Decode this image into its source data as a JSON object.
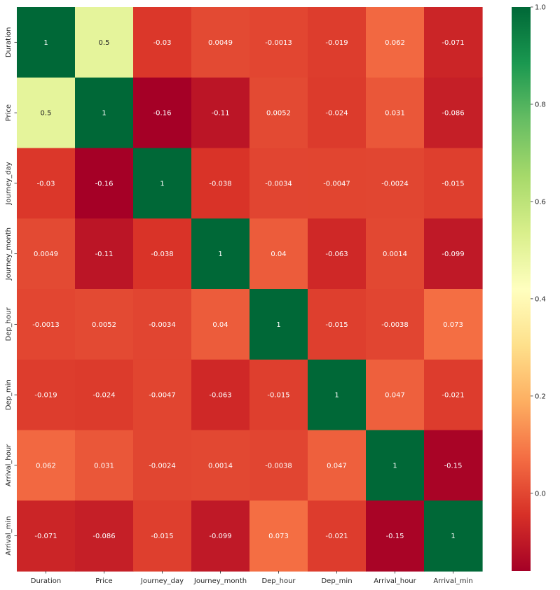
{
  "chart_data": {
    "type": "heatmap",
    "title": "",
    "xlabel": "",
    "ylabel": "",
    "x_categories": [
      "Duration",
      "Price",
      "Journey_day",
      "Journey_month",
      "Dep_hour",
      "Dep_min",
      "Arrival_hour",
      "Arrival_min"
    ],
    "y_categories": [
      "Duration",
      "Price",
      "Journey_day",
      "Journey_month",
      "Dep_hour",
      "Dep_min",
      "Arrival_hour",
      "Arrival_min"
    ],
    "values": [
      [
        1,
        0.5,
        -0.03,
        0.0049,
        -0.0013,
        -0.019,
        0.062,
        -0.071
      ],
      [
        0.5,
        1,
        -0.16,
        -0.11,
        0.0052,
        -0.024,
        0.031,
        -0.086
      ],
      [
        -0.03,
        -0.16,
        1,
        -0.038,
        -0.0034,
        -0.0047,
        -0.0024,
        -0.015
      ],
      [
        0.0049,
        -0.11,
        -0.038,
        1,
        0.04,
        -0.063,
        0.0014,
        -0.099
      ],
      [
        -0.0013,
        0.0052,
        -0.0034,
        0.04,
        1,
        -0.015,
        -0.0038,
        0.073
      ],
      [
        -0.019,
        -0.024,
        -0.0047,
        -0.063,
        -0.015,
        1,
        0.047,
        -0.021
      ],
      [
        0.062,
        0.031,
        -0.0024,
        0.0014,
        -0.0038,
        0.047,
        1,
        -0.15
      ],
      [
        -0.071,
        -0.086,
        -0.015,
        -0.099,
        0.073,
        -0.021,
        -0.15,
        1
      ]
    ],
    "labels": [
      [
        "1",
        "0.5",
        "-0.03",
        "0.0049",
        "-0.0013",
        "-0.019",
        "0.062",
        "-0.071"
      ],
      [
        "0.5",
        "1",
        "-0.16",
        "-0.11",
        "0.0052",
        "-0.024",
        "0.031",
        "-0.086"
      ],
      [
        "-0.03",
        "-0.16",
        "1",
        "-0.038",
        "-0.0034",
        "-0.0047",
        "-0.0024",
        "-0.015"
      ],
      [
        "0.0049",
        "-0.11",
        "-0.038",
        "1",
        "0.04",
        "-0.063",
        "0.0014",
        "-0.099"
      ],
      [
        "-0.0013",
        "0.0052",
        "-0.0034",
        "0.04",
        "1",
        "-0.015",
        "-0.0038",
        "0.073"
      ],
      [
        "-0.019",
        "-0.024",
        "-0.0047",
        "-0.063",
        "-0.015",
        "1",
        "0.047",
        "-0.021"
      ],
      [
        "0.062",
        "0.031",
        "-0.0024",
        "0.0014",
        "-0.0038",
        "0.047",
        "1",
        "-0.15"
      ],
      [
        "-0.071",
        "-0.086",
        "-0.015",
        "-0.099",
        "0.073",
        "-0.021",
        "-0.15",
        "1"
      ]
    ],
    "colormap": "RdYlGn",
    "vmin": -0.16,
    "vmax": 1,
    "colorbar_ticks": [
      0.0,
      0.2,
      0.4,
      0.6,
      0.8,
      1.0
    ],
    "colorbar_tick_labels": [
      "0.0",
      "0.2",
      "0.4",
      "0.6",
      "0.8",
      "1.0"
    ],
    "grid": false,
    "legend": "colorbar-right"
  }
}
